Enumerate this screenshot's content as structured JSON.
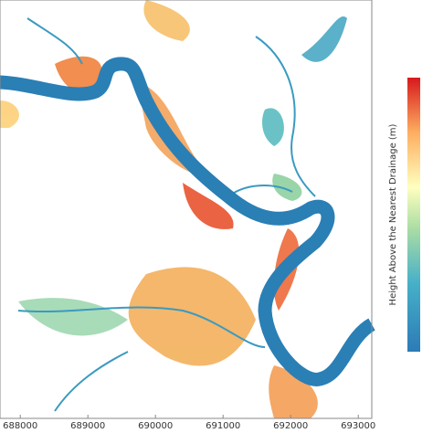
{
  "map": {
    "colorbar_label": "Height Above the Nearest Drainage (m)",
    "xlim": [
      687700,
      693200
    ],
    "xticks": [
      688000,
      689000,
      690000,
      691000,
      692000,
      693000
    ]
  }
}
